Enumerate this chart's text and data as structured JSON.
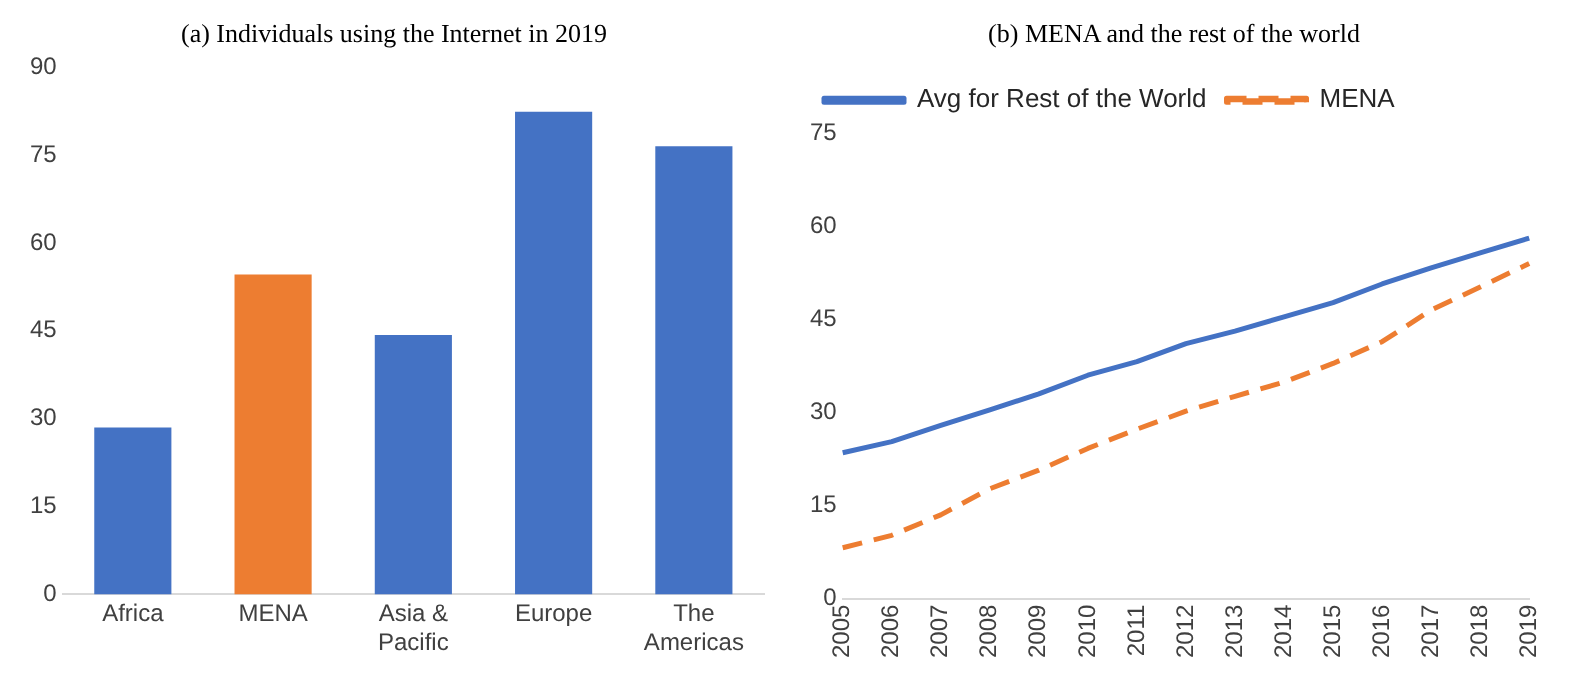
{
  "chart_data": [
    {
      "type": "bar",
      "title": "(a) Individuals using the Internet in 2019",
      "categories": [
        "Africa",
        "MENA",
        "Asia & Pacific",
        "Europe",
        "The Americas"
      ],
      "values": [
        28.5,
        54.6,
        44.3,
        82.4,
        76.5
      ],
      "colors": [
        "#4472c4",
        "#ed7d31",
        "#4472c4",
        "#4472c4",
        "#4472c4"
      ],
      "ylim": [
        0,
        90
      ],
      "yticks": [
        0,
        15,
        30,
        45,
        60,
        75,
        90
      ],
      "grid": false
    },
    {
      "type": "line",
      "title": "(b) MENA and the rest of the world",
      "categories": [
        "2005",
        "2006",
        "2007",
        "2008",
        "2009",
        "2010",
        "2011",
        "2012",
        "2013",
        "2014",
        "2015",
        "2016",
        "2017",
        "2018",
        "2019"
      ],
      "series": [
        {
          "name": "Avg for Rest of the World",
          "color": "#4472c4",
          "line_style": "solid",
          "values": [
            23.5,
            25.3,
            27.9,
            30.4,
            33.0,
            36.0,
            38.2,
            41.1,
            43.1,
            45.4,
            47.7,
            50.7,
            53.3,
            55.7,
            58.1
          ]
        },
        {
          "name": "MENA",
          "color": "#ed7d31",
          "line_style": "dashed",
          "values": [
            8.2,
            10.2,
            13.5,
            17.7,
            20.7,
            24.2,
            27.3,
            30.2,
            32.6,
            34.9,
            37.9,
            41.4,
            46.5,
            50.2,
            54.0
          ]
        }
      ],
      "ylim": [
        0,
        75
      ],
      "yticks": [
        0,
        15,
        30,
        45,
        60,
        75
      ],
      "grid": false,
      "legend": "top left",
      "marker": "none"
    }
  ]
}
